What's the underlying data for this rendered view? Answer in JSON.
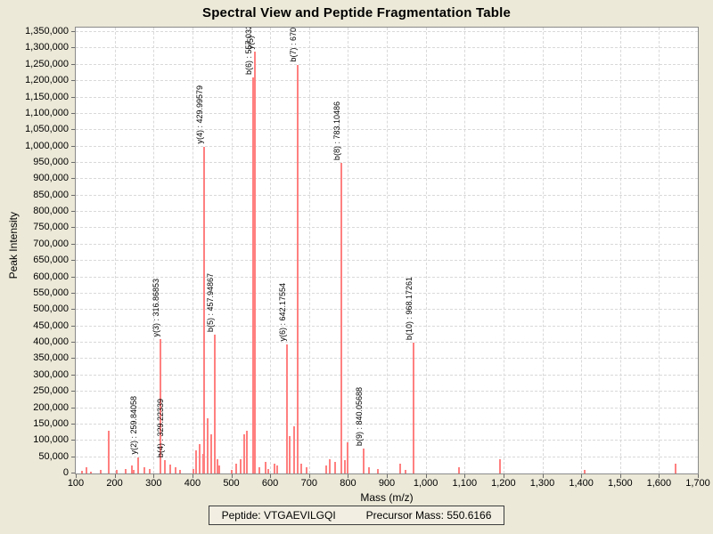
{
  "title": "Spectral View and Peptide Fragmentation Table",
  "footer": {
    "peptide": "Peptide: VTGAEVILGQI",
    "precursor": "Precursor Mass: 550.6166"
  },
  "chart_data": {
    "type": "bar",
    "title": "Spectral View and Peptide Fragmentation Table",
    "xlabel": "Mass (m/z)",
    "ylabel": "Peak Intensity",
    "xlim": [
      100,
      1700
    ],
    "ylim": [
      0,
      1369000
    ],
    "x_tick_step": 100,
    "y_tick_step": 50000,
    "y_tick_max": 1350000,
    "grid": true,
    "peak_color": "#ff8080",
    "labeled_peaks": [
      {
        "mz": 259.84058,
        "intensity": 50000,
        "label": "y(2) : 259.84058"
      },
      {
        "mz": 316.86853,
        "intensity": 410000,
        "label": "y(3) : 316.86853"
      },
      {
        "mz": 329.22339,
        "intensity": 40000,
        "label": "b(4) : 329.22339"
      },
      {
        "mz": 429.99579,
        "intensity": 1000000,
        "label": "y(4) : 429.99579"
      },
      {
        "mz": 457.94867,
        "intensity": 425000,
        "label": "b(5) : 457.94867"
      },
      {
        "mz": 557.032,
        "intensity": 1210000,
        "label": "b(6) : 557.032"
      },
      {
        "mz": 561.0,
        "intensity": 1290000,
        "label": "y(5)"
      },
      {
        "mz": 642.17554,
        "intensity": 395000,
        "label": "y(6) : 642.17554"
      },
      {
        "mz": 670.0,
        "intensity": 1250000,
        "label": "b(7) : 670"
      },
      {
        "mz": 783.10486,
        "intensity": 950000,
        "label": "b(8) : 783.10486"
      },
      {
        "mz": 840.05688,
        "intensity": 75000,
        "label": "b(9) : 840.05688"
      },
      {
        "mz": 968.17261,
        "intensity": 400000,
        "label": "b(10) : 968.17261"
      }
    ],
    "minor_peaks": [
      [
        115,
        8000
      ],
      [
        127,
        20000
      ],
      [
        140,
        6000
      ],
      [
        164,
        12000
      ],
      [
        185,
        130000
      ],
      [
        205,
        10000
      ],
      [
        228,
        15000
      ],
      [
        244,
        25000
      ],
      [
        249,
        12000
      ],
      [
        276,
        20000
      ],
      [
        290,
        15000
      ],
      [
        342,
        28000
      ],
      [
        356,
        20000
      ],
      [
        368,
        10000
      ],
      [
        402,
        15000
      ],
      [
        409,
        70000
      ],
      [
        418,
        90000
      ],
      [
        427,
        60000
      ],
      [
        438,
        170000
      ],
      [
        448,
        120000
      ],
      [
        464,
        45000
      ],
      [
        470,
        25000
      ],
      [
        500,
        12000
      ],
      [
        512,
        30000
      ],
      [
        523,
        45000
      ],
      [
        532,
        120000
      ],
      [
        539,
        130000
      ],
      [
        573,
        20000
      ],
      [
        587,
        35000
      ],
      [
        596,
        15000
      ],
      [
        610,
        30000
      ],
      [
        617,
        25000
      ],
      [
        651,
        115000
      ],
      [
        661,
        145000
      ],
      [
        679,
        30000
      ],
      [
        694,
        20000
      ],
      [
        743,
        25000
      ],
      [
        754,
        45000
      ],
      [
        766,
        35000
      ],
      [
        793,
        40000
      ],
      [
        800,
        95000
      ],
      [
        853,
        20000
      ],
      [
        878,
        15000
      ],
      [
        934,
        30000
      ],
      [
        948,
        12000
      ],
      [
        1085,
        18000
      ],
      [
        1190,
        43000
      ],
      [
        1408,
        10000
      ],
      [
        1643,
        30000
      ]
    ]
  }
}
